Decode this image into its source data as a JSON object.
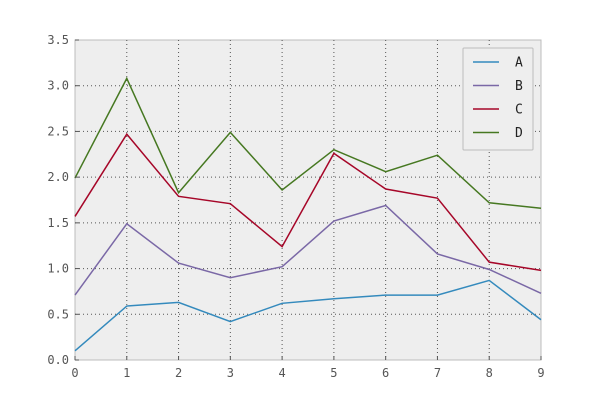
{
  "chart_data": {
    "type": "line",
    "title": "",
    "xlabel": "",
    "ylabel": "",
    "x": [
      0,
      1,
      2,
      3,
      4,
      5,
      6,
      7,
      8,
      9
    ],
    "xlim": [
      0,
      9
    ],
    "ylim": [
      0,
      3.5
    ],
    "xticks": [
      "0",
      "1",
      "2",
      "3",
      "4",
      "5",
      "6",
      "7",
      "8",
      "9"
    ],
    "yticks": [
      "0.0",
      "0.5",
      "1.0",
      "1.5",
      "2.0",
      "2.5",
      "3.0",
      "3.5"
    ],
    "grid": true,
    "legend_position": "top-right",
    "background_color": "#eeeeee",
    "series": [
      {
        "name": "A",
        "color": "#348abd",
        "values": [
          0.1,
          0.59,
          0.63,
          0.42,
          0.62,
          0.67,
          0.71,
          0.71,
          0.87,
          0.44
        ]
      },
      {
        "name": "B",
        "color": "#7a68a6",
        "values": [
          0.71,
          1.49,
          1.06,
          0.9,
          1.02,
          1.52,
          1.69,
          1.16,
          0.99,
          0.73
        ]
      },
      {
        "name": "C",
        "color": "#a60628",
        "values": [
          1.57,
          2.47,
          1.79,
          1.71,
          1.24,
          2.26,
          1.87,
          1.77,
          1.07,
          0.98
        ]
      },
      {
        "name": "D",
        "color": "#467821",
        "values": [
          1.99,
          3.08,
          1.83,
          2.49,
          1.86,
          2.3,
          2.06,
          2.24,
          1.72,
          1.66
        ]
      }
    ]
  }
}
